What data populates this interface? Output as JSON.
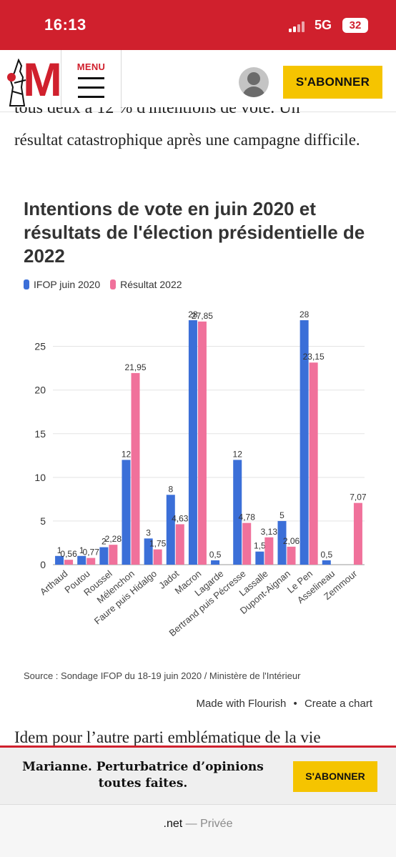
{
  "status_bar": {
    "time": "16:13",
    "network": "5G",
    "battery": "32"
  },
  "header": {
    "logo_letter": "M",
    "menu_label": "MENU",
    "subscribe_label": "S'ABONNER"
  },
  "article": {
    "clipped_line": "tous deux à 12 % d'intentions de vote. Un",
    "paragraph_tail": "résultat catastrophique après une campagne difficile.",
    "next_paragraph": "Idem pour l’autre parti emblématique de la vie"
  },
  "chart": {
    "title": "Intentions de vote en juin 2020 et résultats de l'élection présidentielle de 2022",
    "source": "Source : Sondage IFOP du 18-19 juin 2020 / Ministère de l'Intérieur",
    "made_with": "Made with Flourish",
    "separator": "•",
    "create": "Create a chart"
  },
  "chart_data": {
    "type": "bar",
    "categories": [
      "Arthaud",
      "Poutou",
      "Roussel",
      "Mélenchon",
      "Faure puis Hidalgo",
      "Jadot",
      "Macron",
      "Lagarde",
      "Bertrand puis Pécresse",
      "Lassalle",
      "Dupont-Aignan",
      "Le Pen",
      "Asselineau",
      "Zemmour"
    ],
    "series": [
      {
        "name": "IFOP juin 2020",
        "color": "#3b6fd8",
        "values": [
          1,
          1,
          2,
          12,
          3,
          8,
          28,
          0.5,
          12,
          1.5,
          5,
          28,
          0.5,
          null
        ],
        "labels": [
          "1",
          "1",
          "2",
          "12",
          "3",
          "8",
          "28",
          "0,5",
          "12",
          "1,5",
          "5",
          "28",
          "0,5",
          ""
        ]
      },
      {
        "name": "Résultat 2022",
        "color": "#f0719b",
        "values": [
          0.56,
          0.77,
          2.28,
          21.95,
          1.75,
          4.63,
          27.85,
          null,
          4.78,
          3.13,
          2.06,
          23.15,
          null,
          7.07
        ],
        "labels": [
          "0,56",
          "0,77",
          "2,28",
          "21,95",
          "1,75",
          "4,63",
          "27,85",
          "",
          "4,78",
          "3,13",
          "2,06",
          "23,15",
          "",
          "7,07"
        ]
      }
    ],
    "y_ticks": [
      "0",
      "5",
      "10",
      "15",
      "20",
      "25"
    ],
    "ylim": [
      0,
      28
    ],
    "grid": true,
    "legend_position": "top-left"
  },
  "banner": {
    "text": "Marianne. Perturbatrice d’opinions toutes faites.",
    "button": "S'ABONNER"
  },
  "url_bar": {
    "domain": ".net",
    "dash": "—",
    "mode": "Privée"
  },
  "colors": {
    "brand_red": "#d0202d",
    "accent_yellow": "#f5c400",
    "ifop_blue": "#3b6fd8",
    "result_pink": "#f0719b"
  }
}
